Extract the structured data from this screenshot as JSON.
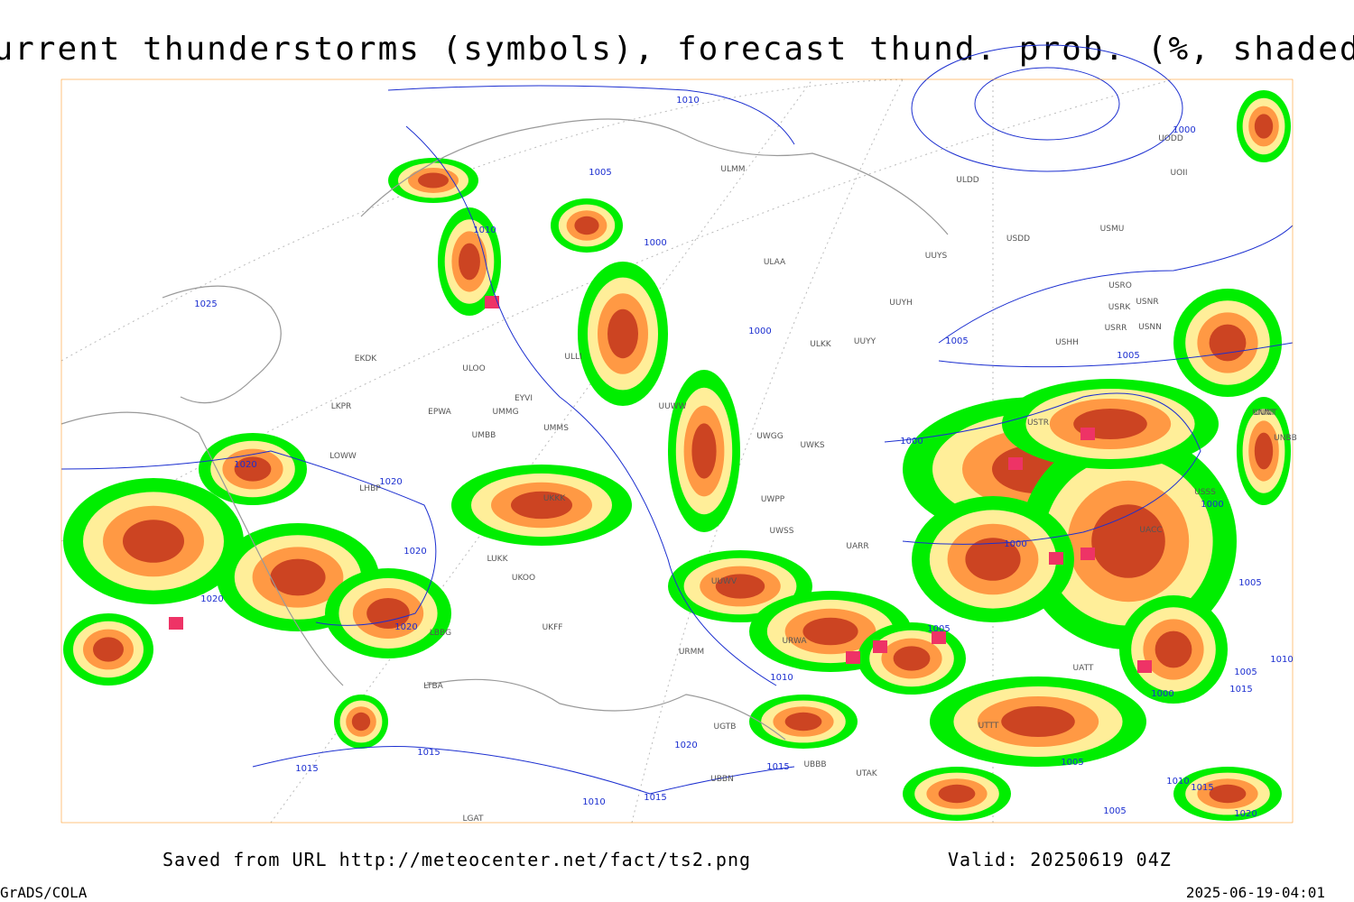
{
  "header": {
    "title": "Current thunderstorms (symbols), forecast thund. prob. (%, shaded)"
  },
  "map": {
    "isobar_labels": [
      "1010",
      "1005",
      "1010",
      "1000",
      "1025",
      "1000",
      "1005",
      "1005",
      "1000",
      "1000",
      "1020",
      "1020",
      "1020",
      "1000",
      "1000",
      "1020",
      "1020",
      "1005",
      "1005",
      "1010",
      "1000",
      "1005",
      "1015",
      "1020",
      "1015",
      "1015",
      "1015",
      "1005",
      "1010",
      "1015",
      "1010",
      "1015",
      "1005",
      "1020",
      "1010"
    ],
    "stations": [
      "ULMM",
      "ULDD",
      "UODD",
      "UOII",
      "USDD",
      "USMU",
      "ULAA",
      "UUYS",
      "USRO",
      "USRK",
      "USNR",
      "UUYH",
      "USRR",
      "USNN",
      "ULKK",
      "UUYY",
      "USHH",
      "UUNT",
      "EKDK",
      "ULLI",
      "ULOO",
      "EYVI",
      "EPWA",
      "UMMG",
      "LKPR",
      "UMBB",
      "UMMS",
      "UUWW",
      "LOWW",
      "LHBP",
      "UWGG",
      "UWKS",
      "USTR",
      "UNNT",
      "UNBB",
      "UWPP",
      "USSS",
      "UWSS",
      "UKKK",
      "UKOO",
      "UACC",
      "UARR",
      "LUKK",
      "UKFF",
      "LBBG",
      "URMM",
      "UUWV",
      "URWA",
      "UATT",
      "UTAK",
      "LTBA",
      "UBBB",
      "UGTB",
      "UTTT",
      "UBBN",
      "LGAT"
    ]
  },
  "footer": {
    "saved": "Saved from URL http://meteocenter.net/fact/ts2.png",
    "valid": "Valid: 20250619 04Z",
    "software": "GrADS/COLA",
    "timestamp": "2025-06-19-04:01"
  }
}
